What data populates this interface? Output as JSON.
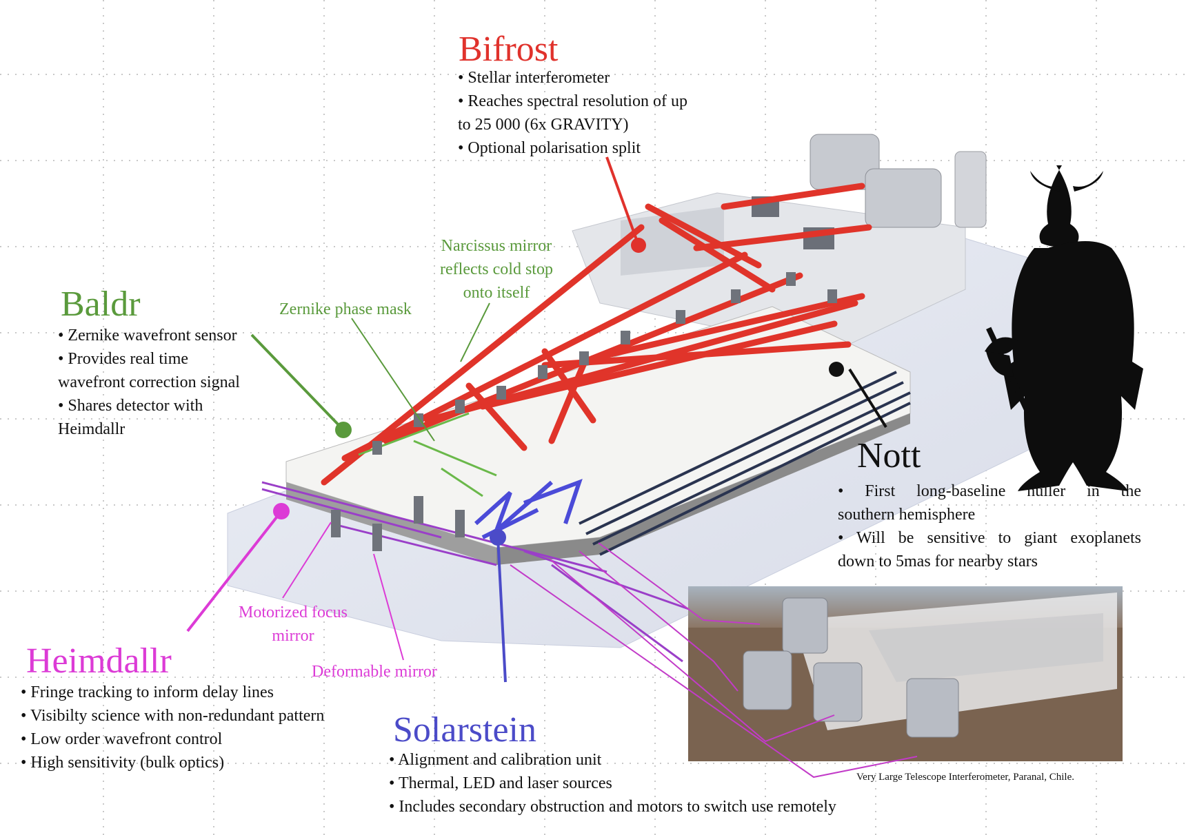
{
  "colors": {
    "bifrost": "#e0322c",
    "baldr": "#5a9a3c",
    "heimdallr": "#dc3bd6",
    "solarstein": "#4b4bc8",
    "nott": "#111111",
    "beam_red": "#e0342a",
    "beam_purple": "#9a3fc8"
  },
  "bifrost": {
    "title": "Bifrost",
    "bullets": [
      "• Stellar interferometer",
      "• Reaches spectral resolution of up",
      "to 25 000 (6x GRAVITY)",
      "• Optional polarisation split"
    ]
  },
  "baldr": {
    "title": "Baldr",
    "bullets": [
      "• Zernike wavefront sensor",
      "• Provides real time",
      "wavefront correction signal",
      "• Shares detector with",
      "Heimdallr"
    ]
  },
  "labels": {
    "narcissus": [
      "Narcissus mirror",
      "reflects cold stop",
      "onto itself"
    ],
    "zernike_mask": "Zernike phase mask",
    "motorized": [
      "Motorized focus",
      "mirror"
    ],
    "deformable": "Deformable mirror"
  },
  "heimdallr": {
    "title": "Heimdallr",
    "bullets": [
      "• Fringe tracking to inform delay lines",
      "• Visibilty science with non-redundant pattern",
      "• Low order wavefront control",
      "• High sensitivity (bulk optics)"
    ]
  },
  "solarstein": {
    "title": "Solarstein",
    "bullets": [
      "• Alignment and calibration unit",
      "• Thermal, LED and laser sources",
      "• Includes secondary obstruction and motors to switch use remotely"
    ]
  },
  "nott": {
    "title": "Nott",
    "bullets": [
      "• First long-baseline nuller in the",
      "southern hemisphere",
      "• Will be sensitive to giant exoplanets",
      "down to 5mas for nearby stars"
    ]
  },
  "photo": {
    "caption": "Very Large Telescope Interferometer, Paranal, Chile."
  },
  "icons": {
    "silhouette": "viking-silhouette-icon",
    "photo": "vlti-telescopes-photo"
  }
}
